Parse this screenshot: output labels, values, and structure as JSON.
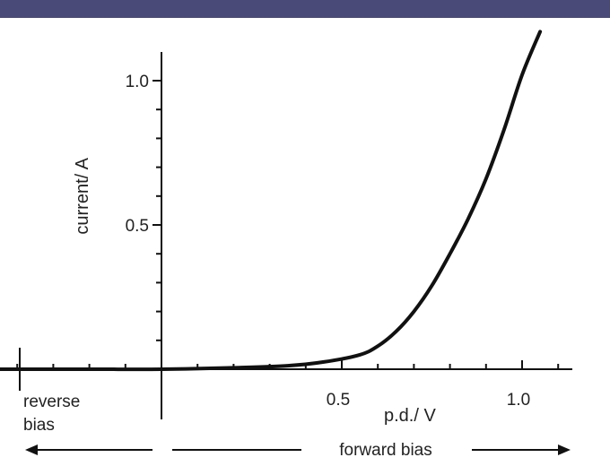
{
  "colors": {
    "top_band": "#4a4a78",
    "ink": "#111111"
  },
  "chart_data": {
    "type": "line",
    "xlabel": "p.d./ V",
    "ylabel": "current/ A",
    "xlim": [
      -0.5,
      1.15
    ],
    "ylim": [
      0,
      1.2
    ],
    "x_ticks": [
      0.5,
      1.0
    ],
    "x_tick_labels": [
      "0.5",
      "1.0"
    ],
    "y_ticks": [
      0.5,
      1.0
    ],
    "y_tick_labels": [
      "0.5",
      "1.0"
    ],
    "grid": false,
    "series": [
      {
        "x": [
          -0.5,
          -0.2,
          0,
          0.2,
          0.35,
          0.45,
          0.55,
          0.6,
          0.65,
          0.7,
          0.75,
          0.8,
          0.85,
          0.9,
          0.95,
          1.0,
          1.05
        ],
        "y": [
          0.0,
          0.0,
          0.0,
          0.005,
          0.012,
          0.025,
          0.05,
          0.08,
          0.13,
          0.2,
          0.29,
          0.4,
          0.52,
          0.66,
          0.83,
          1.02,
          1.17
        ]
      }
    ],
    "annotations": {
      "reverse": "reverse\nbias",
      "forward": "forward bias"
    }
  }
}
